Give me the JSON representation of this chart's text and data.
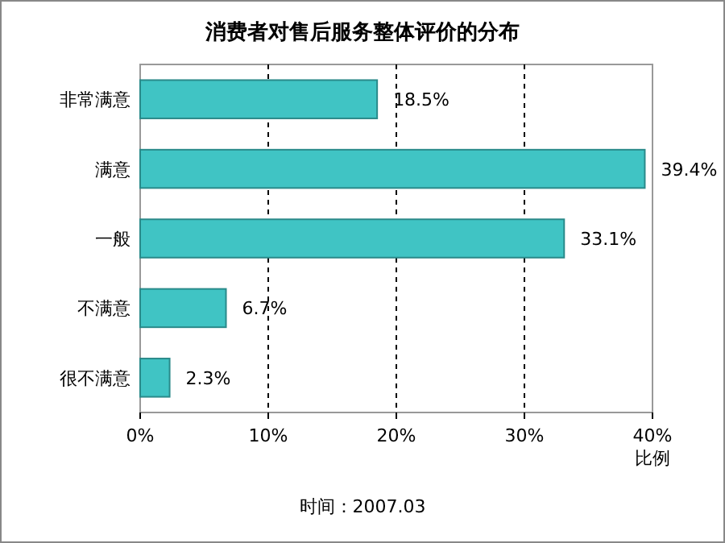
{
  "chart_data": {
    "type": "bar",
    "orientation": "horizontal",
    "title": "消费者对售后服务整体评价的分布",
    "categories": [
      "非常满意",
      "满意",
      "一般",
      "不满意",
      "很不满意"
    ],
    "values": [
      18.5,
      39.4,
      33.1,
      6.7,
      2.3
    ],
    "value_labels": [
      "18.5%",
      "39.4%",
      "33.1%",
      "6.7%",
      "2.3%"
    ],
    "color": "#40c4c4",
    "xlim": [
      0,
      40
    ],
    "xticks": [
      {
        "value": 0,
        "label": "0%"
      },
      {
        "value": 10,
        "label": "10%"
      },
      {
        "value": 20,
        "label": "20%"
      },
      {
        "value": 30,
        "label": "30%"
      },
      {
        "value": 40,
        "label": "40%"
      }
    ],
    "xlabel": "比例",
    "grid": "x",
    "annotations": [
      "时间：2007.03"
    ]
  }
}
